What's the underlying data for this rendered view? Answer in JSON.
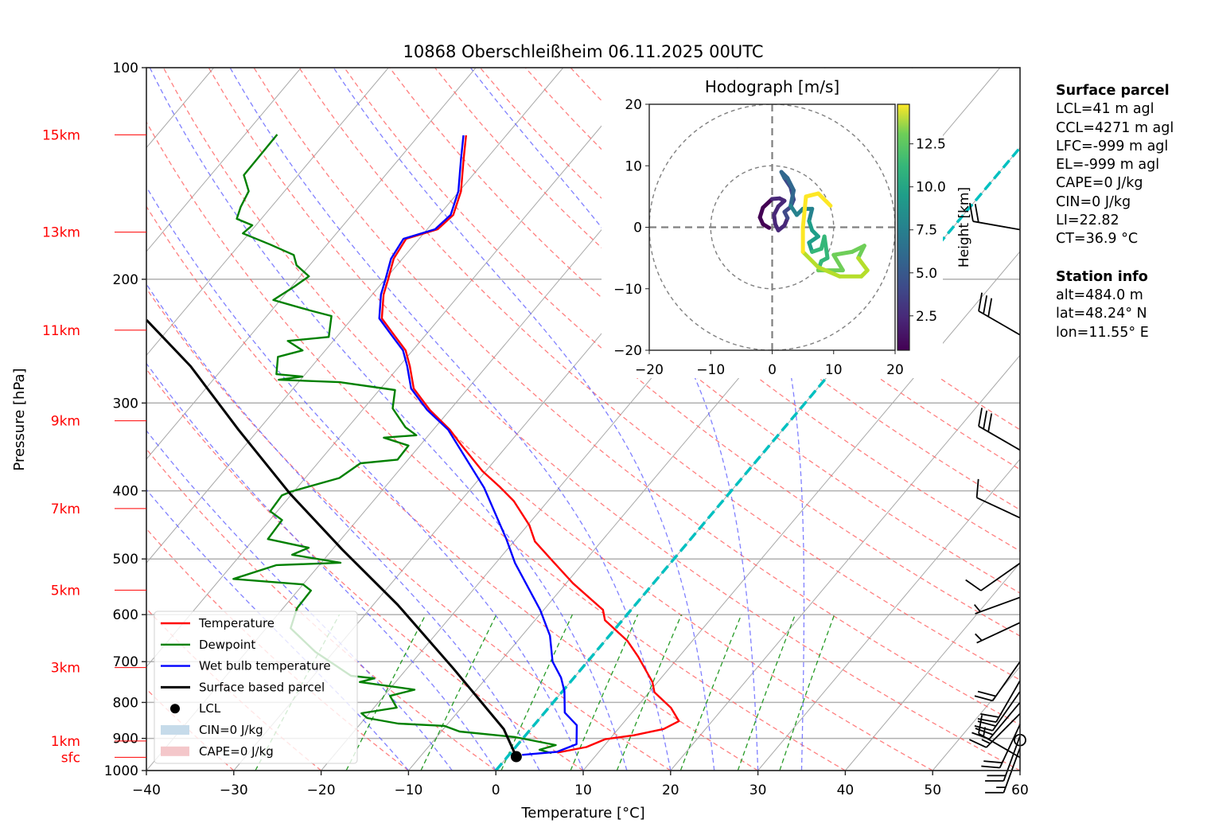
{
  "chart_data": {
    "type": "skewt",
    "title": "10868 Oberschleißheim 06.11.2025 00UTC",
    "xlabel": "Temperature [°C]",
    "ylabel": "Pressure [hPa]",
    "xlim": [
      -40,
      60
    ],
    "ylim": [
      1000,
      100
    ],
    "x_ticks": [
      -40,
      -30,
      -20,
      -10,
      0,
      10,
      20,
      30,
      40,
      50,
      60
    ],
    "x_tick_labels": [
      "−40",
      "−30",
      "−20",
      "−10",
      "0",
      "10",
      "20",
      "30",
      "40",
      "50",
      "60"
    ],
    "y_ticks": [
      100,
      200,
      300,
      400,
      500,
      600,
      700,
      800,
      900,
      1000
    ],
    "y_tick_labels": [
      "100",
      "200",
      "300",
      "400",
      "500",
      "600",
      "700",
      "800",
      "900",
      "1000"
    ],
    "height_labels": [
      {
        "label": "15km",
        "p": 124.6
      },
      {
        "label": "13km",
        "p": 171.4
      },
      {
        "label": "11km",
        "p": 236.3
      },
      {
        "label": "9km",
        "p": 318.0
      },
      {
        "label": "7km",
        "p": 423.9
      },
      {
        "label": "5km",
        "p": 553.8
      },
      {
        "label": "3km",
        "p": 713.7
      },
      {
        "label": "1km",
        "p": 907.7
      },
      {
        "label": "sfc",
        "p": 957.5
      }
    ],
    "isotherm_step": 10,
    "freezing_isotherm": 0,
    "dry_adiabats_theta_c": [
      -30,
      -20,
      -10,
      0,
      10,
      20,
      30,
      40,
      50,
      60,
      70,
      80,
      90,
      100,
      110,
      120,
      130,
      140
    ],
    "moist_adiabats_c": [
      -10,
      -5,
      0,
      5,
      10,
      15,
      20,
      25,
      30,
      35
    ],
    "mixing_ratio_gkg": [
      0.4,
      1,
      2,
      4,
      7,
      10,
      16,
      24,
      32
    ],
    "series": [
      {
        "name": "Temperature",
        "color": "#ff0000",
        "points": [
          [
            942.9,
            5.3
          ],
          [
            925.9,
            8.1
          ],
          [
            902.3,
            9.5
          ],
          [
            890.9,
            12.4
          ],
          [
            872.7,
            15.2
          ],
          [
            850.6,
            16.2
          ],
          [
            814.3,
            14.0
          ],
          [
            773.6,
            10.6
          ],
          [
            748.3,
            9.4
          ],
          [
            688.4,
            5.3
          ],
          [
            654.3,
            2.6
          ],
          [
            611.0,
            -2.0
          ],
          [
            590.9,
            -3.2
          ],
          [
            541.6,
            -9.2
          ],
          [
            504.1,
            -13.6
          ],
          [
            472.1,
            -17.6
          ],
          [
            447.7,
            -19.8
          ],
          [
            413.7,
            -23.9
          ],
          [
            394.7,
            -26.9
          ],
          [
            374.8,
            -30.4
          ],
          [
            344.9,
            -35.2
          ],
          [
            327.4,
            -38.1
          ],
          [
            306.9,
            -42.3
          ],
          [
            286.1,
            -46.2
          ],
          [
            265.9,
            -48.8
          ],
          [
            252.5,
            -50.8
          ],
          [
            239.7,
            -53.7
          ],
          [
            227.4,
            -56.6
          ],
          [
            210.3,
            -58.7
          ],
          [
            200.6,
            -59.6
          ],
          [
            187.0,
            -61.0
          ],
          [
            175.2,
            -61.5
          ],
          [
            169.8,
            -58.8
          ],
          [
            162.0,
            -58.4
          ],
          [
            149.9,
            -59.8
          ],
          [
            134.9,
            -62.6
          ],
          [
            124.8,
            -64.6
          ]
        ]
      },
      {
        "name": "Dewpoint",
        "color": "#008000",
        "points": [
          [
            944.6,
            4.7
          ],
          [
            934.2,
            3.0
          ],
          [
            919.9,
            4.4
          ],
          [
            896.2,
            -1.0
          ],
          [
            880.0,
            -7.9
          ],
          [
            864.0,
            -10.2
          ],
          [
            857.3,
            -15.7
          ],
          [
            841.8,
            -19.8
          ],
          [
            828.8,
            -20.9
          ],
          [
            813.9,
            -17.4
          ],
          [
            783.1,
            -19.3
          ],
          [
            767.2,
            -17.1
          ],
          [
            748.3,
            -24.1
          ],
          [
            739.3,
            -22.8
          ],
          [
            733.3,
            -25.7
          ],
          [
            677.9,
            -32.1
          ],
          [
            627.4,
            -37.2
          ],
          [
            587.7,
            -38.4
          ],
          [
            554.6,
            -38.5
          ],
          [
            543.5,
            -40.0
          ],
          [
            533.9,
            -48.5
          ],
          [
            510.1,
            -44.9
          ],
          [
            506.2,
            -37.8
          ],
          [
            493.2,
            -44.1
          ],
          [
            481.9,
            -42.9
          ],
          [
            468.4,
            -48.4
          ],
          [
            440.2,
            -48.6
          ],
          [
            427.7,
            -50.8
          ],
          [
            406.1,
            -51.0
          ],
          [
            400.9,
            -50.3
          ],
          [
            383.5,
            -46.1
          ],
          [
            365.5,
            -45.1
          ],
          [
            361.1,
            -41.2
          ],
          [
            344.9,
            -41.3
          ],
          [
            336.0,
            -44.9
          ],
          [
            333.4,
            -41.4
          ],
          [
            324.9,
            -43.4
          ],
          [
            305.3,
            -46.7
          ],
          [
            287.5,
            -48.2
          ],
          [
            280.2,
            -55.3
          ],
          [
            278.0,
            -62.5
          ],
          [
            275.1,
            -60.1
          ],
          [
            273.0,
            -63.3
          ],
          [
            257.9,
            -64.8
          ],
          [
            252.5,
            -62.6
          ],
          [
            244.8,
            -65.2
          ],
          [
            241.6,
            -60.9
          ],
          [
            225.6,
            -62.6
          ],
          [
            221.5,
            -65.6
          ],
          [
            214.1,
            -70.8
          ],
          [
            204.9,
            -69.7
          ],
          [
            198.1,
            -69.0
          ],
          [
            191.0,
            -71.5
          ],
          [
            184.7,
            -72.8
          ],
          [
            178.5,
            -76.5
          ],
          [
            172.1,
            -80.7
          ],
          [
            167.6,
            -80.4
          ],
          [
            164.1,
            -82.8
          ],
          [
            157.9,
            -83.5
          ],
          [
            149.9,
            -84.1
          ],
          [
            142.2,
            -86.2
          ],
          [
            124.5,
            -86.3
          ]
        ]
      },
      {
        "name": "Wet bulb temperature",
        "color": "#0000ff",
        "points": [
          [
            950.0,
            1.5
          ],
          [
            940.6,
            5.2
          ],
          [
            917.3,
            6.7
          ],
          [
            862.2,
            4.9
          ],
          [
            827.0,
            2.3
          ],
          [
            771.0,
            0.2
          ],
          [
            737.4,
            -1.5
          ],
          [
            699.9,
            -4.0
          ],
          [
            642.8,
            -6.8
          ],
          [
            590.9,
            -10.4
          ],
          [
            506.7,
            -17.8
          ],
          [
            468.4,
            -21.1
          ],
          [
            395.8,
            -28.6
          ],
          [
            361.1,
            -33.3
          ],
          [
            327.4,
            -38.3
          ],
          [
            306.9,
            -42.6
          ],
          [
            286.1,
            -46.5
          ],
          [
            265.9,
            -49.1
          ],
          [
            252.5,
            -51.1
          ],
          [
            239.7,
            -54.0
          ],
          [
            227.4,
            -56.9
          ],
          [
            210.3,
            -59.0
          ],
          [
            200.6,
            -59.9
          ],
          [
            187.0,
            -61.3
          ],
          [
            175.2,
            -61.8
          ],
          [
            169.8,
            -59.1
          ],
          [
            162.0,
            -58.7
          ],
          [
            149.9,
            -60.1
          ],
          [
            134.9,
            -62.9
          ],
          [
            124.8,
            -64.9
          ]
        ]
      },
      {
        "name": "Surface based parcel",
        "color": "#000000",
        "points": [
          [
            955.5,
            1.0
          ],
          [
            872.7,
            -3.1
          ],
          [
            715.8,
            -14.7
          ],
          [
            581.0,
            -27.2
          ],
          [
            484.6,
            -38.9
          ],
          [
            404.0,
            -50.2
          ],
          [
            327.4,
            -62.3
          ],
          [
            265.9,
            -73.9
          ],
          [
            228.5,
            -83.4
          ]
        ]
      }
    ],
    "lcl": {
      "name": "LCL",
      "p": 955.5,
      "t": 1.0
    },
    "legend": {
      "position": "lower-left",
      "entries": [
        {
          "label": "Temperature",
          "kind": "line",
          "color": "#ff0000"
        },
        {
          "label": "Dewpoint",
          "kind": "line",
          "color": "#008000"
        },
        {
          "label": "Wet bulb temperature",
          "kind": "line",
          "color": "#0000ff"
        },
        {
          "label": "Surface based parcel",
          "kind": "line",
          "color": "#000000"
        },
        {
          "label": "LCL",
          "kind": "dot",
          "color": "#000000"
        },
        {
          "label": "CIN=0 J/kg",
          "kind": "patch",
          "color": "#c6dbea"
        },
        {
          "label": "CAPE=0 J/kg",
          "kind": "patch",
          "color": "#f4c7ca"
        }
      ]
    },
    "wind_barbs": [
      {
        "p": 958,
        "dir": 300,
        "kt": 15
      },
      {
        "p": 928,
        "dir": 200,
        "kt": 15
      },
      {
        "p": 905,
        "dir": 0,
        "kt": 0
      },
      {
        "p": 893,
        "dir": 200,
        "kt": 20
      },
      {
        "p": 860,
        "dir": 205,
        "kt": 20
      },
      {
        "p": 830,
        "dir": 225,
        "kt": 15
      },
      {
        "p": 800,
        "dir": 220,
        "kt": 20
      },
      {
        "p": 772,
        "dir": 215,
        "kt": 20
      },
      {
        "p": 745,
        "dir": 210,
        "kt": 20
      },
      {
        "p": 700,
        "dir": 215,
        "kt": 20
      },
      {
        "p": 616,
        "dir": 245,
        "kt": 5
      },
      {
        "p": 567,
        "dir": 250,
        "kt": 5
      },
      {
        "p": 507,
        "dir": 235,
        "kt": 10
      },
      {
        "p": 437,
        "dir": 295,
        "kt": 10
      },
      {
        "p": 350,
        "dir": 300,
        "kt": 30
      },
      {
        "p": 240,
        "dir": 300,
        "kt": 30
      },
      {
        "p": 170,
        "dir": 280,
        "kt": 20
      }
    ],
    "hodograph": {
      "title": "Hodograph [m/s]",
      "xlim": [
        -20,
        20
      ],
      "ylim": [
        -20,
        20
      ],
      "ticks": [
        -20,
        -10,
        0,
        10,
        20
      ],
      "tick_labels": [
        "−20",
        "−10",
        "0",
        "10",
        "20"
      ],
      "rings": [
        10,
        20
      ],
      "colorbar_label": "Height [km]",
      "colorbar_ticks": [
        2.5,
        5.0,
        7.5,
        10.0,
        12.5
      ],
      "colorbar_tick_labels": [
        "2.5",
        "5.0",
        "7.5",
        "10.0",
        "12.5"
      ],
      "height_range_km": [
        0.5,
        14.8
      ],
      "points": [
        {
          "u": -0.5,
          "v": -0.1,
          "h": 0.5
        },
        {
          "u": -1.5,
          "v": 0.5,
          "h": 0.7
        },
        {
          "u": -2.0,
          "v": 1.6,
          "h": 0.9
        },
        {
          "u": -1.5,
          "v": 3.2,
          "h": 1.1
        },
        {
          "u": 0.0,
          "v": 4.6,
          "h": 1.3
        },
        {
          "u": 1.2,
          "v": 4.7,
          "h": 1.5
        },
        {
          "u": 2.0,
          "v": 4.3,
          "h": 1.7
        },
        {
          "u": 1.0,
          "v": 3.4,
          "h": 1.9
        },
        {
          "u": 0.3,
          "v": 2.0,
          "h": 2.1
        },
        {
          "u": 0.5,
          "v": 0.5,
          "h": 2.3
        },
        {
          "u": 1.0,
          "v": -0.5,
          "h": 2.5
        },
        {
          "u": 2.0,
          "v": 0.3,
          "h": 2.7
        },
        {
          "u": 2.5,
          "v": 1.5,
          "h": 2.9
        },
        {
          "u": 2.0,
          "v": 2.5,
          "h": 3.1
        },
        {
          "u": 3.0,
          "v": 3.3,
          "h": 3.4
        },
        {
          "u": 3.5,
          "v": 4.5,
          "h": 3.7
        },
        {
          "u": 3.0,
          "v": 6.5,
          "h": 4.1
        },
        {
          "u": 2.0,
          "v": 8.0,
          "h": 4.6
        },
        {
          "u": 1.5,
          "v": 9.0,
          "h": 5.0
        },
        {
          "u": 2.5,
          "v": 8.0,
          "h": 5.4
        },
        {
          "u": 3.5,
          "v": 6.0,
          "h": 5.8
        },
        {
          "u": 3.0,
          "v": 3.5,
          "h": 6.3
        },
        {
          "u": 4.0,
          "v": 2.0,
          "h": 6.8
        },
        {
          "u": 5.0,
          "v": 3.0,
          "h": 7.2
        },
        {
          "u": 6.5,
          "v": 3.0,
          "h": 7.6
        },
        {
          "u": 6.0,
          "v": 1.0,
          "h": 8.0
        },
        {
          "u": 6.5,
          "v": -0.5,
          "h": 8.4
        },
        {
          "u": 7.5,
          "v": -1.5,
          "h": 8.8
        },
        {
          "u": 6.0,
          "v": -2.5,
          "h": 9.1
        },
        {
          "u": 6.5,
          "v": -4.0,
          "h": 9.4
        },
        {
          "u": 8.0,
          "v": -3.5,
          "h": 9.7
        },
        {
          "u": 8.5,
          "v": -1.5,
          "h": 10.0
        },
        {
          "u": 9.0,
          "v": -5.0,
          "h": 10.4
        },
        {
          "u": 8.0,
          "v": -5.5,
          "h": 10.8
        },
        {
          "u": 7.5,
          "v": -7.0,
          "h": 11.1
        },
        {
          "u": 11.5,
          "v": -7.0,
          "h": 11.5
        },
        {
          "u": 10.0,
          "v": -4.5,
          "h": 11.8
        },
        {
          "u": 13.0,
          "v": -4.0,
          "h": 12.1
        },
        {
          "u": 15.0,
          "v": -3.0,
          "h": 12.4
        },
        {
          "u": 14.0,
          "v": -5.0,
          "h": 12.7
        },
        {
          "u": 15.5,
          "v": -7.0,
          "h": 13.0
        },
        {
          "u": 14.5,
          "v": -8.0,
          "h": 13.3
        },
        {
          "u": 11.0,
          "v": -8.0,
          "h": 13.6
        },
        {
          "u": 7.5,
          "v": -6.5,
          "h": 13.9
        },
        {
          "u": 5.0,
          "v": -4.0,
          "h": 14.1
        },
        {
          "u": 5.0,
          "v": 0.0,
          "h": 14.3
        },
        {
          "u": 5.5,
          "v": 5.0,
          "h": 14.5
        },
        {
          "u": 7.5,
          "v": 5.5,
          "h": 14.7
        },
        {
          "u": 9.5,
          "v": 3.5,
          "h": 14.8
        }
      ]
    }
  },
  "info_panel": {
    "surface_header": "Surface parcel",
    "surface_lines": [
      "LCL=41 m agl",
      "CCL=4271 m agl",
      "LFC=-999 m agl",
      "EL=-999 m agl",
      "CAPE=0 J/kg",
      "CIN=0 J/kg",
      "LI=22.82",
      "CT=36.9 °C"
    ],
    "station_header": "Station info",
    "station_lines": [
      "alt=484.0 m",
      "lat=48.24° N",
      "lon=11.55° E"
    ]
  }
}
